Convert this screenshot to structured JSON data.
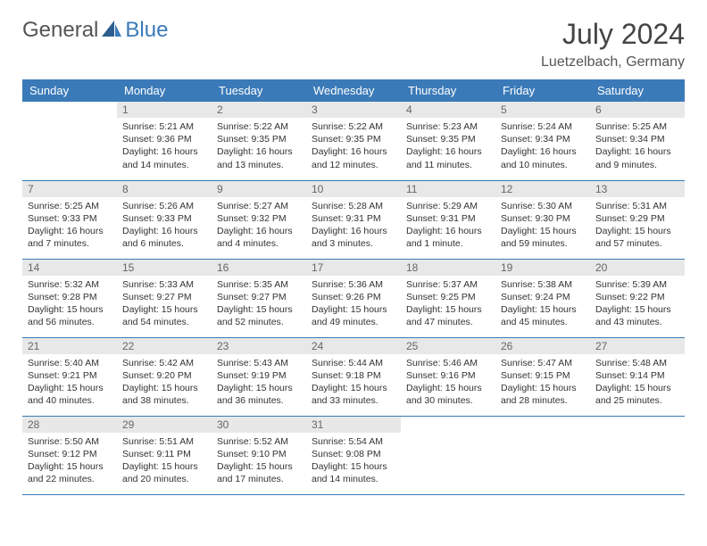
{
  "brand": {
    "part1": "General",
    "part2": "Blue"
  },
  "title": "July 2024",
  "location": "Luetzelbach, Germany",
  "colors": {
    "accent": "#3b7ab8",
    "daynum_bg": "#e8e8e8",
    "text": "#333333"
  },
  "weekdays": [
    "Sunday",
    "Monday",
    "Tuesday",
    "Wednesday",
    "Thursday",
    "Friday",
    "Saturday"
  ],
  "weeks": [
    [
      null,
      {
        "n": "1",
        "sr": "5:21 AM",
        "ss": "9:36 PM",
        "dl": "16 hours and 14 minutes."
      },
      {
        "n": "2",
        "sr": "5:22 AM",
        "ss": "9:35 PM",
        "dl": "16 hours and 13 minutes."
      },
      {
        "n": "3",
        "sr": "5:22 AM",
        "ss": "9:35 PM",
        "dl": "16 hours and 12 minutes."
      },
      {
        "n": "4",
        "sr": "5:23 AM",
        "ss": "9:35 PM",
        "dl": "16 hours and 11 minutes."
      },
      {
        "n": "5",
        "sr": "5:24 AM",
        "ss": "9:34 PM",
        "dl": "16 hours and 10 minutes."
      },
      {
        "n": "6",
        "sr": "5:25 AM",
        "ss": "9:34 PM",
        "dl": "16 hours and 9 minutes."
      }
    ],
    [
      {
        "n": "7",
        "sr": "5:25 AM",
        "ss": "9:33 PM",
        "dl": "16 hours and 7 minutes."
      },
      {
        "n": "8",
        "sr": "5:26 AM",
        "ss": "9:33 PM",
        "dl": "16 hours and 6 minutes."
      },
      {
        "n": "9",
        "sr": "5:27 AM",
        "ss": "9:32 PM",
        "dl": "16 hours and 4 minutes."
      },
      {
        "n": "10",
        "sr": "5:28 AM",
        "ss": "9:31 PM",
        "dl": "16 hours and 3 minutes."
      },
      {
        "n": "11",
        "sr": "5:29 AM",
        "ss": "9:31 PM",
        "dl": "16 hours and 1 minute."
      },
      {
        "n": "12",
        "sr": "5:30 AM",
        "ss": "9:30 PM",
        "dl": "15 hours and 59 minutes."
      },
      {
        "n": "13",
        "sr": "5:31 AM",
        "ss": "9:29 PM",
        "dl": "15 hours and 57 minutes."
      }
    ],
    [
      {
        "n": "14",
        "sr": "5:32 AM",
        "ss": "9:28 PM",
        "dl": "15 hours and 56 minutes."
      },
      {
        "n": "15",
        "sr": "5:33 AM",
        "ss": "9:27 PM",
        "dl": "15 hours and 54 minutes."
      },
      {
        "n": "16",
        "sr": "5:35 AM",
        "ss": "9:27 PM",
        "dl": "15 hours and 52 minutes."
      },
      {
        "n": "17",
        "sr": "5:36 AM",
        "ss": "9:26 PM",
        "dl": "15 hours and 49 minutes."
      },
      {
        "n": "18",
        "sr": "5:37 AM",
        "ss": "9:25 PM",
        "dl": "15 hours and 47 minutes."
      },
      {
        "n": "19",
        "sr": "5:38 AM",
        "ss": "9:24 PM",
        "dl": "15 hours and 45 minutes."
      },
      {
        "n": "20",
        "sr": "5:39 AM",
        "ss": "9:22 PM",
        "dl": "15 hours and 43 minutes."
      }
    ],
    [
      {
        "n": "21",
        "sr": "5:40 AM",
        "ss": "9:21 PM",
        "dl": "15 hours and 40 minutes."
      },
      {
        "n": "22",
        "sr": "5:42 AM",
        "ss": "9:20 PM",
        "dl": "15 hours and 38 minutes."
      },
      {
        "n": "23",
        "sr": "5:43 AM",
        "ss": "9:19 PM",
        "dl": "15 hours and 36 minutes."
      },
      {
        "n": "24",
        "sr": "5:44 AM",
        "ss": "9:18 PM",
        "dl": "15 hours and 33 minutes."
      },
      {
        "n": "25",
        "sr": "5:46 AM",
        "ss": "9:16 PM",
        "dl": "15 hours and 30 minutes."
      },
      {
        "n": "26",
        "sr": "5:47 AM",
        "ss": "9:15 PM",
        "dl": "15 hours and 28 minutes."
      },
      {
        "n": "27",
        "sr": "5:48 AM",
        "ss": "9:14 PM",
        "dl": "15 hours and 25 minutes."
      }
    ],
    [
      {
        "n": "28",
        "sr": "5:50 AM",
        "ss": "9:12 PM",
        "dl": "15 hours and 22 minutes."
      },
      {
        "n": "29",
        "sr": "5:51 AM",
        "ss": "9:11 PM",
        "dl": "15 hours and 20 minutes."
      },
      {
        "n": "30",
        "sr": "5:52 AM",
        "ss": "9:10 PM",
        "dl": "15 hours and 17 minutes."
      },
      {
        "n": "31",
        "sr": "5:54 AM",
        "ss": "9:08 PM",
        "dl": "15 hours and 14 minutes."
      },
      null,
      null,
      null
    ]
  ],
  "labels": {
    "sunrise": "Sunrise:",
    "sunset": "Sunset:",
    "daylight": "Daylight:"
  }
}
